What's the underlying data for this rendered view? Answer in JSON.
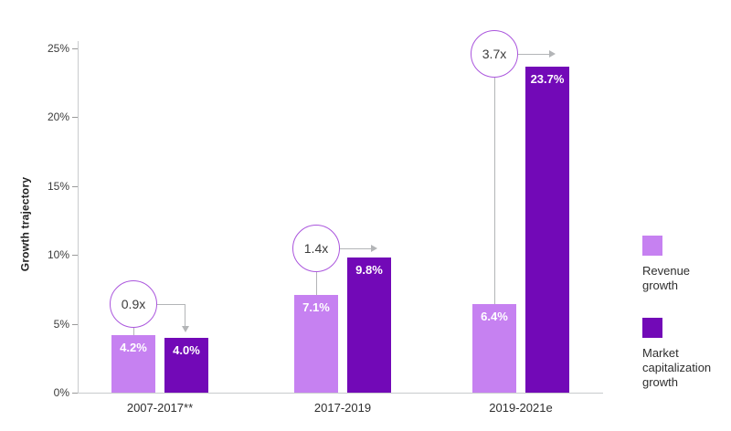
{
  "chart_data": {
    "type": "bar",
    "title": "",
    "xlabel": "",
    "ylabel": "Growth trajectory",
    "ylim": [
      0,
      25
    ],
    "yticks": [
      "0%",
      "5%",
      "10%",
      "15%",
      "20%",
      "25%"
    ],
    "ytick_values": [
      0,
      5,
      10,
      15,
      20,
      25
    ],
    "grid": false,
    "legend_position": "right",
    "categories": [
      "2007-2017**",
      "2017-2019",
      "2019-2021e"
    ],
    "series": [
      {
        "name": "Revenue growth",
        "color": "#c681f1",
        "values": [
          4.2,
          7.1,
          6.4
        ],
        "labels": [
          "4.2%",
          "7.1%",
          "6.4%"
        ]
      },
      {
        "name": "Market capitalization growth",
        "color": "#7209b7",
        "values": [
          4.0,
          9.8,
          23.7
        ],
        "labels": [
          "4.0%",
          "9.8%",
          "23.7%"
        ]
      }
    ],
    "annotations": [
      {
        "label": "0.9x",
        "group": 0,
        "y_pct": 6.4,
        "arrow": "elbow-down"
      },
      {
        "label": "1.4x",
        "group": 1,
        "y_pct": 10.5,
        "arrow": "right"
      },
      {
        "label": "3.7x",
        "group": 2,
        "y_pct": 24.6,
        "arrow": "right"
      }
    ],
    "annotation_circle_color": "#aa55dd",
    "connector_color": "#b3b5b7",
    "axis_color": "#c9cbcd"
  },
  "legend": {
    "items": [
      {
        "label": "Revenue growth",
        "color": "#c681f1"
      },
      {
        "label": "Market capitalization growth",
        "color": "#7209b7"
      }
    ]
  }
}
